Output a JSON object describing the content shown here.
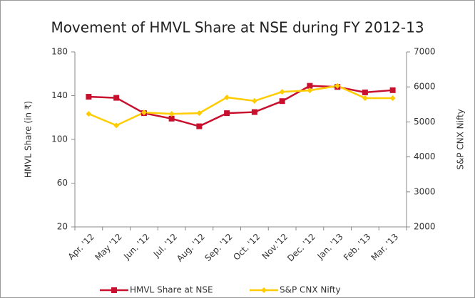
{
  "chart_data": {
    "type": "line",
    "title": "Movement of HMVL Share at NSE during FY 2012-13",
    "y_label": "HMVL Share (in ₹)",
    "y2_label": "S&P CNX Nifty",
    "categories": [
      "Apr. '12",
      "May '12",
      "Jun. '12",
      "Jul. '12",
      "Aug. '12",
      "Sep. '12",
      "Oct. '12",
      "Nov.'12",
      "Dec. '12",
      "Jan. '13",
      "Feb. '13",
      "Mar. '13"
    ],
    "series": [
      {
        "name": "HMVL Share at NSE",
        "color": "#c8102e",
        "marker": "square",
        "values": [
          139,
          138,
          124,
          119,
          112,
          124,
          125,
          135,
          149,
          148,
          143,
          145
        ]
      },
      {
        "name": "S&P CNX Nifty",
        "color": "#ffcc00",
        "marker": "diamond",
        "axis": "y2",
        "values": [
          5230,
          4900,
          5270,
          5230,
          5250,
          5700,
          5600,
          5860,
          5900,
          6030,
          5680,
          5680
        ]
      }
    ],
    "ylim": [
      20,
      180
    ],
    "yticks": [
      20,
      60,
      100,
      140,
      180
    ],
    "y2lim": [
      2000,
      7000
    ],
    "y2ticks": [
      2000,
      3000,
      4000,
      5000,
      6000,
      7000
    ],
    "legend": "bottom"
  }
}
